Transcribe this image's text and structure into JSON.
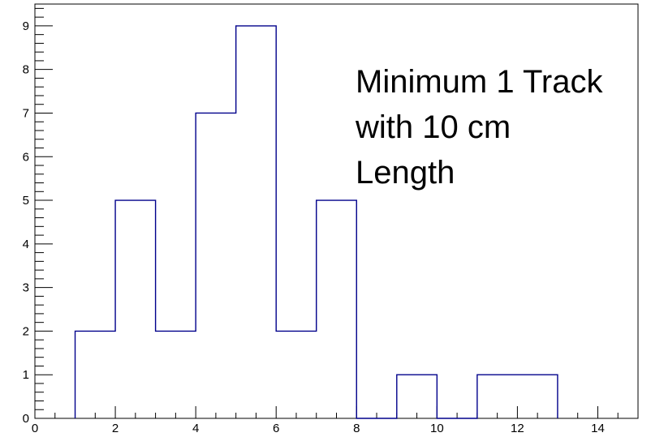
{
  "chart_data": {
    "type": "histogram",
    "bin_edges": [
      1,
      2,
      3,
      4,
      5,
      6,
      7,
      8,
      9,
      10,
      11,
      12,
      13
    ],
    "counts": [
      2,
      5,
      2,
      7,
      9,
      2,
      5,
      0,
      1,
      0,
      1,
      1
    ],
    "xlim": [
      0,
      15
    ],
    "ylim": [
      0,
      9.5
    ],
    "x_ticks": [
      0,
      2,
      4,
      6,
      8,
      10,
      12,
      14
    ],
    "y_ticks": [
      0,
      1,
      2,
      3,
      4,
      5,
      6,
      7,
      8,
      9
    ],
    "title": "",
    "xlabel": "",
    "ylabel": "",
    "grid": false,
    "line_color": "#00008b",
    "annotation": [
      "Minimum 1 Track",
      "with 10 cm",
      "Length"
    ]
  }
}
